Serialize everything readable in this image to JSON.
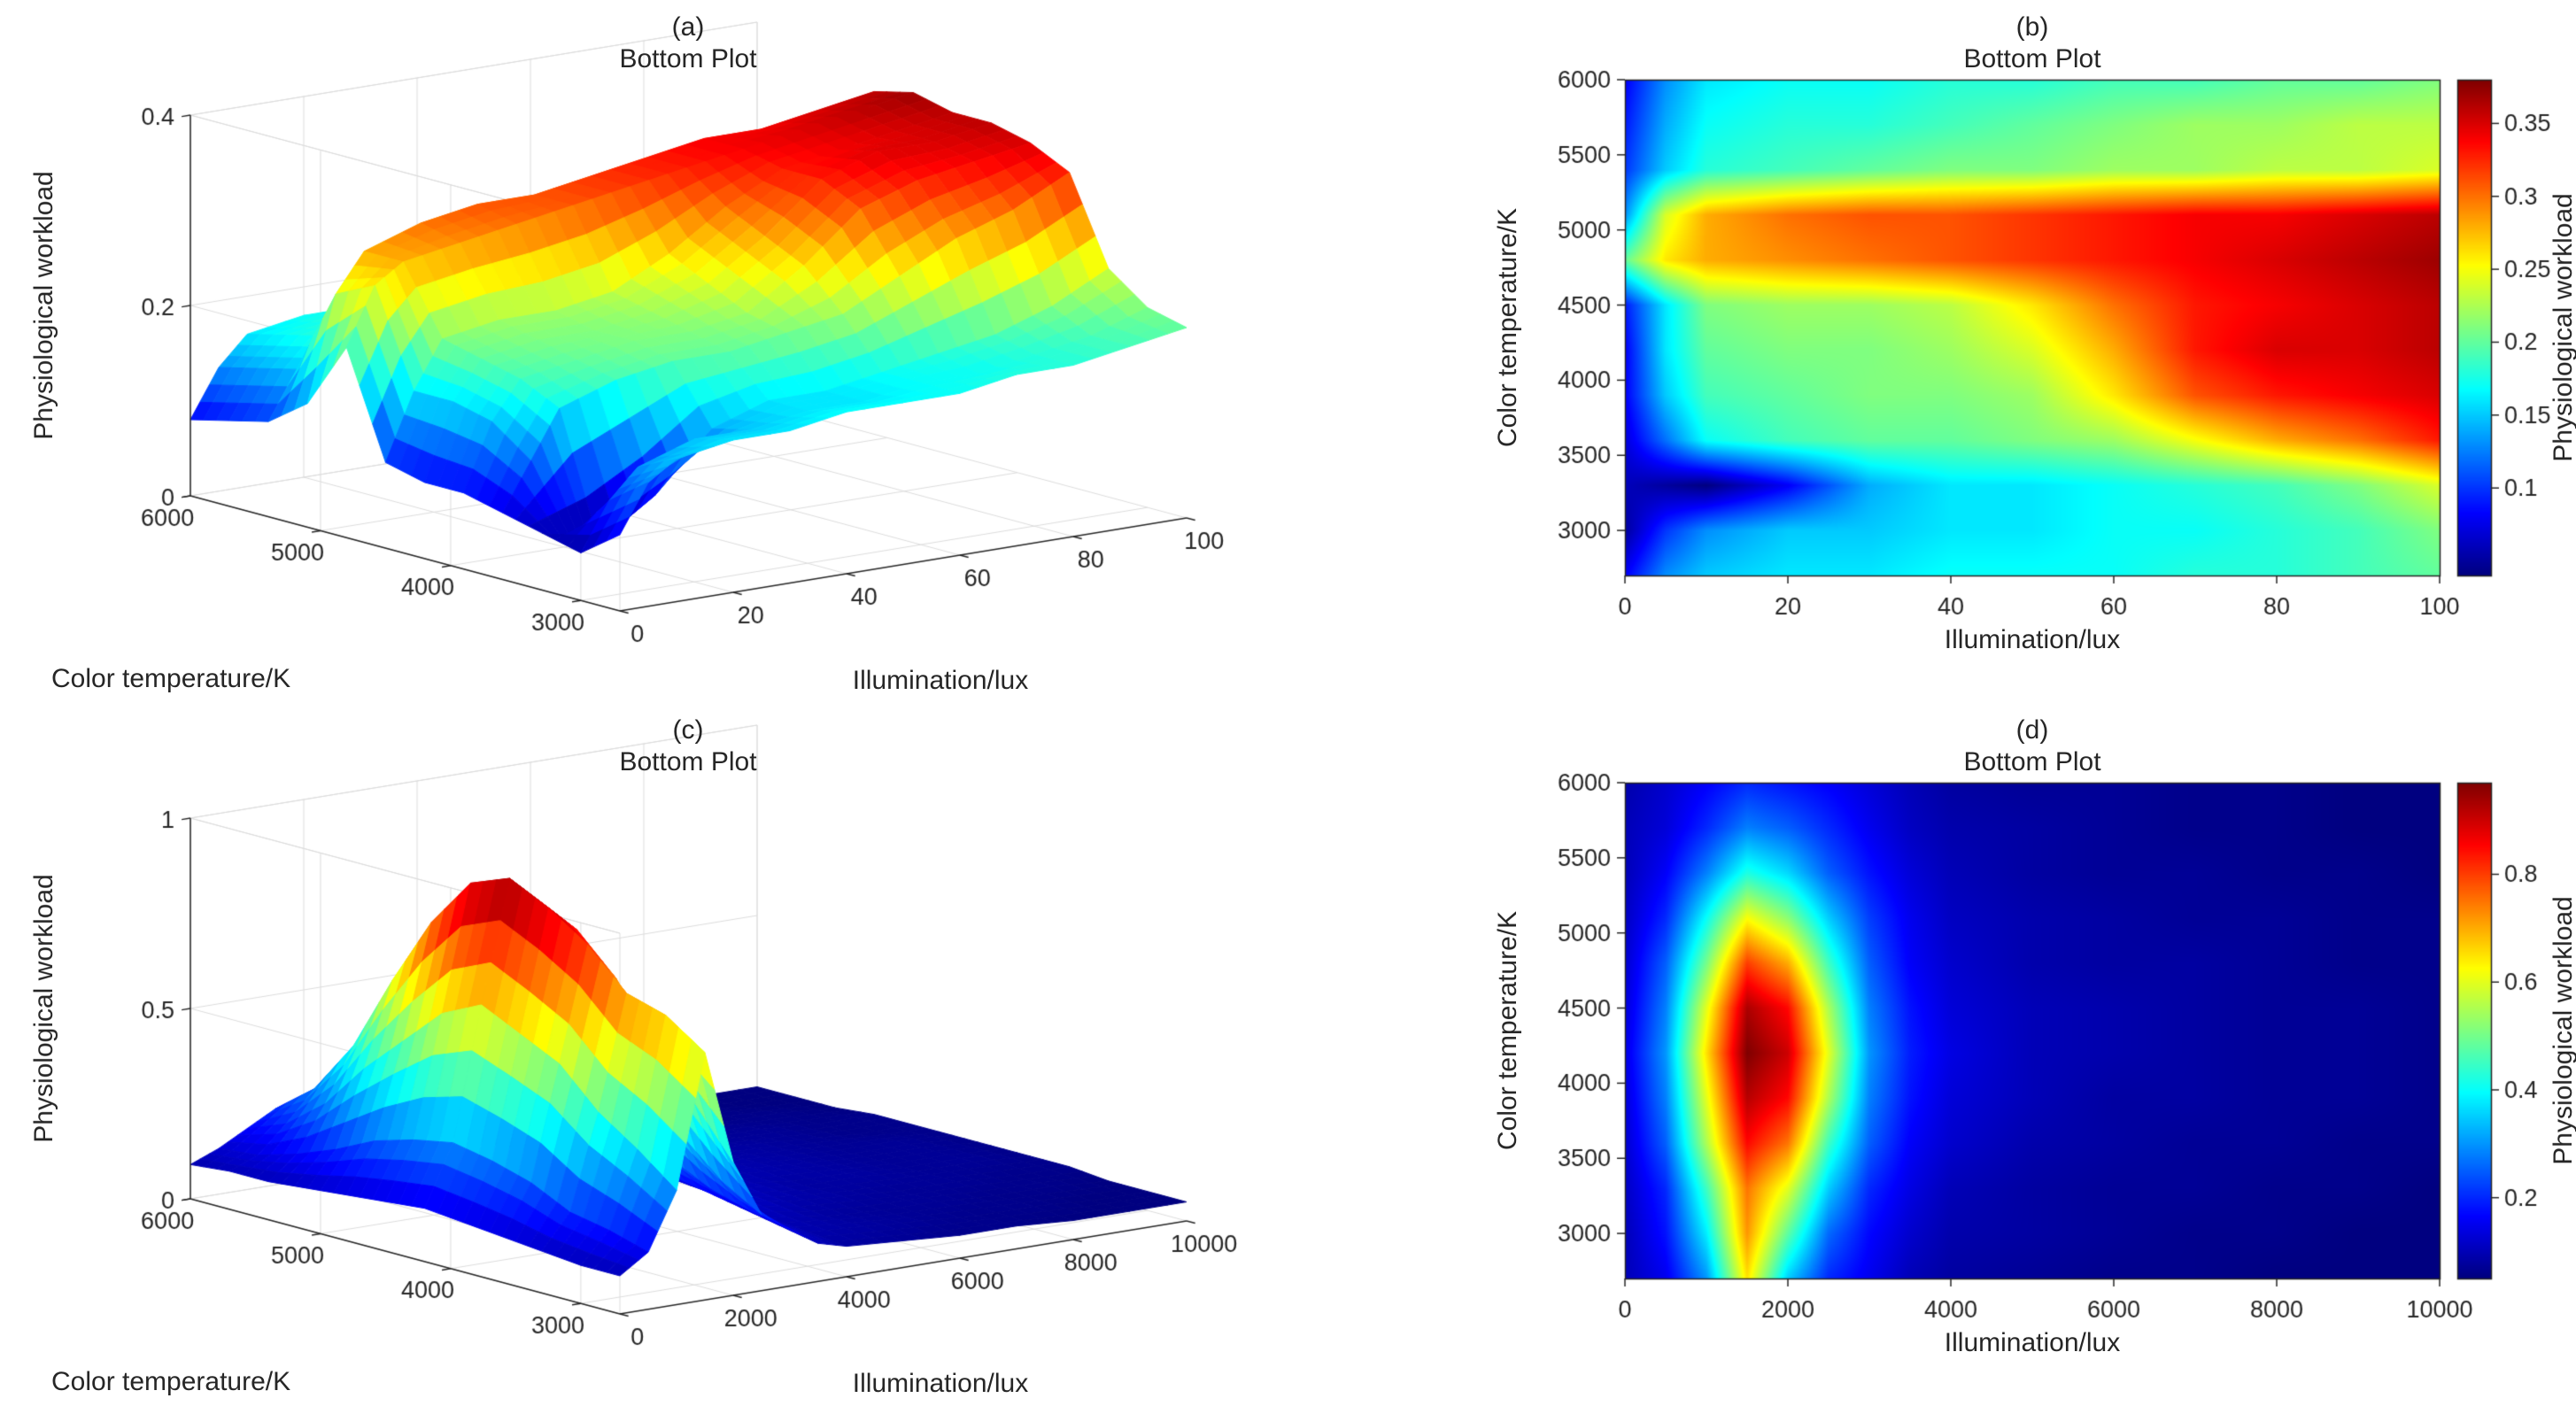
{
  "colors": {
    "background": "#ffffff",
    "text": "#262626",
    "axis": "#262626",
    "grid": "#dcdcdc"
  },
  "chart_data": [
    {
      "panel_label": "(a)",
      "title": "Bottom Plot",
      "type": "surface",
      "xlabel": "Illumination/lux",
      "ylabel": "Color temperature/K",
      "zlabel": "Physiological workload",
      "x": [
        0,
        5,
        10,
        20,
        30,
        40,
        50,
        60,
        70,
        80,
        90,
        100
      ],
      "y": [
        2700,
        3000,
        3300,
        3600,
        3900,
        4200,
        4500,
        4800,
        5100,
        5400,
        5700,
        6000
      ],
      "z": [
        [
          0.08,
          0.13,
          0.15,
          0.16,
          0.16,
          0.17,
          0.17,
          0.17,
          0.18,
          0.18,
          0.19,
          0.2
        ],
        [
          0.05,
          0.1,
          0.13,
          0.15,
          0.15,
          0.16,
          0.16,
          0.17,
          0.17,
          0.18,
          0.19,
          0.21
        ],
        [
          0.06,
          0.05,
          0.04,
          0.08,
          0.14,
          0.16,
          0.16,
          0.17,
          0.18,
          0.19,
          0.21,
          0.24
        ],
        [
          0.07,
          0.12,
          0.17,
          0.19,
          0.2,
          0.2,
          0.21,
          0.22,
          0.25,
          0.28,
          0.3,
          0.33
        ],
        [
          0.08,
          0.15,
          0.19,
          0.2,
          0.21,
          0.21,
          0.22,
          0.26,
          0.31,
          0.33,
          0.34,
          0.35
        ],
        [
          0.08,
          0.16,
          0.2,
          0.21,
          0.21,
          0.22,
          0.24,
          0.28,
          0.33,
          0.35,
          0.35,
          0.36
        ],
        [
          0.09,
          0.16,
          0.21,
          0.22,
          0.22,
          0.23,
          0.26,
          0.3,
          0.33,
          0.34,
          0.35,
          0.36
        ],
        [
          0.2,
          0.26,
          0.28,
          0.29,
          0.3,
          0.31,
          0.32,
          0.33,
          0.34,
          0.35,
          0.36,
          0.37
        ],
        [
          0.13,
          0.24,
          0.28,
          0.3,
          0.31,
          0.31,
          0.32,
          0.33,
          0.34,
          0.34,
          0.35,
          0.36
        ],
        [
          0.1,
          0.15,
          0.18,
          0.19,
          0.2,
          0.21,
          0.21,
          0.22,
          0.22,
          0.23,
          0.23,
          0.24
        ],
        [
          0.09,
          0.14,
          0.17,
          0.18,
          0.18,
          0.19,
          0.2,
          0.21,
          0.22,
          0.22,
          0.23,
          0.23
        ],
        [
          0.08,
          0.13,
          0.16,
          0.17,
          0.17,
          0.18,
          0.18,
          0.19,
          0.19,
          0.2,
          0.2,
          0.21
        ]
      ],
      "xlim": [
        0,
        100
      ],
      "ylim": [
        2700,
        6000
      ],
      "zlim": [
        0,
        0.4
      ],
      "x_ticks": [
        0,
        20,
        40,
        60,
        80,
        100
      ],
      "y_ticks": [
        3000,
        4000,
        5000,
        6000
      ],
      "z_ticks": [
        0,
        0.2,
        0.4
      ],
      "clim": [
        0.04,
        0.38
      ]
    },
    {
      "panel_label": "(b)",
      "title": "Bottom Plot",
      "type": "heatmap",
      "xlabel": "Illumination/lux",
      "ylabel": "Color temperature/K",
      "colorbar_label": "Physiological workload",
      "x": [
        0,
        5,
        10,
        20,
        30,
        40,
        50,
        60,
        70,
        80,
        90,
        100
      ],
      "y": [
        2700,
        3000,
        3300,
        3600,
        3900,
        4200,
        4500,
        4800,
        5100,
        5400,
        5700,
        6000
      ],
      "z": [
        [
          0.08,
          0.13,
          0.15,
          0.16,
          0.16,
          0.17,
          0.17,
          0.17,
          0.18,
          0.18,
          0.19,
          0.2
        ],
        [
          0.05,
          0.1,
          0.13,
          0.15,
          0.15,
          0.16,
          0.16,
          0.17,
          0.17,
          0.18,
          0.19,
          0.21
        ],
        [
          0.06,
          0.05,
          0.04,
          0.08,
          0.14,
          0.16,
          0.16,
          0.17,
          0.18,
          0.19,
          0.21,
          0.24
        ],
        [
          0.07,
          0.12,
          0.17,
          0.19,
          0.2,
          0.2,
          0.21,
          0.22,
          0.25,
          0.28,
          0.3,
          0.33
        ],
        [
          0.08,
          0.15,
          0.19,
          0.2,
          0.21,
          0.21,
          0.22,
          0.26,
          0.31,
          0.33,
          0.34,
          0.35
        ],
        [
          0.08,
          0.16,
          0.2,
          0.21,
          0.21,
          0.22,
          0.24,
          0.28,
          0.33,
          0.35,
          0.35,
          0.36
        ],
        [
          0.09,
          0.16,
          0.21,
          0.22,
          0.22,
          0.23,
          0.26,
          0.3,
          0.33,
          0.34,
          0.35,
          0.36
        ],
        [
          0.2,
          0.26,
          0.28,
          0.29,
          0.3,
          0.31,
          0.32,
          0.33,
          0.34,
          0.35,
          0.36,
          0.37
        ],
        [
          0.13,
          0.24,
          0.28,
          0.3,
          0.31,
          0.31,
          0.32,
          0.33,
          0.34,
          0.34,
          0.35,
          0.36
        ],
        [
          0.1,
          0.15,
          0.18,
          0.19,
          0.2,
          0.21,
          0.21,
          0.22,
          0.22,
          0.23,
          0.23,
          0.24
        ],
        [
          0.09,
          0.14,
          0.17,
          0.18,
          0.18,
          0.19,
          0.2,
          0.21,
          0.22,
          0.22,
          0.23,
          0.23
        ],
        [
          0.08,
          0.13,
          0.16,
          0.17,
          0.17,
          0.18,
          0.18,
          0.19,
          0.19,
          0.2,
          0.2,
          0.21
        ]
      ],
      "xlim": [
        0,
        100
      ],
      "ylim": [
        2700,
        6000
      ],
      "x_ticks": [
        0,
        20,
        40,
        60,
        80,
        100
      ],
      "y_ticks": [
        3000,
        3500,
        4000,
        4500,
        5000,
        5500,
        6000
      ],
      "clim": [
        0.04,
        0.38
      ],
      "colorbar_ticks": [
        0.1,
        0.15,
        0.2,
        0.25,
        0.3,
        0.35
      ]
    },
    {
      "panel_label": "(c)",
      "title": "Bottom Plot",
      "type": "surface",
      "xlabel": "Illumination/lux",
      "ylabel": "Color temperature/K",
      "zlabel": "Physiological workload",
      "x": [
        0,
        500,
        1000,
        1500,
        2000,
        2500,
        3000,
        3500,
        4000,
        5000,
        6000,
        7000,
        8000,
        9000,
        10000
      ],
      "y": [
        2700,
        3000,
        3300,
        3600,
        3900,
        4200,
        4500,
        4800,
        5100,
        5400,
        5700,
        6000
      ],
      "z": [
        [
          0.1,
          0.15,
          0.3,
          0.65,
          0.35,
          0.2,
          0.15,
          0.1,
          0.08,
          0.07,
          0.06,
          0.06,
          0.05,
          0.05,
          0.05
        ],
        [
          0.1,
          0.18,
          0.38,
          0.72,
          0.48,
          0.26,
          0.17,
          0.12,
          0.09,
          0.08,
          0.07,
          0.06,
          0.06,
          0.05,
          0.05
        ],
        [
          0.11,
          0.2,
          0.45,
          0.75,
          0.6,
          0.35,
          0.2,
          0.14,
          0.1,
          0.08,
          0.07,
          0.07,
          0.06,
          0.06,
          0.05
        ],
        [
          0.12,
          0.25,
          0.55,
          0.85,
          0.75,
          0.45,
          0.25,
          0.16,
          0.12,
          0.09,
          0.08,
          0.07,
          0.07,
          0.06,
          0.06
        ],
        [
          0.13,
          0.28,
          0.6,
          0.92,
          0.85,
          0.55,
          0.28,
          0.18,
          0.13,
          0.1,
          0.08,
          0.08,
          0.07,
          0.07,
          0.06
        ],
        [
          0.14,
          0.3,
          0.65,
          0.97,
          0.9,
          0.6,
          0.3,
          0.19,
          0.14,
          0.1,
          0.09,
          0.08,
          0.07,
          0.07,
          0.06
        ],
        [
          0.13,
          0.28,
          0.6,
          0.93,
          0.85,
          0.55,
          0.28,
          0.18,
          0.13,
          0.1,
          0.09,
          0.08,
          0.07,
          0.07,
          0.06
        ],
        [
          0.12,
          0.25,
          0.5,
          0.8,
          0.7,
          0.45,
          0.25,
          0.16,
          0.12,
          0.09,
          0.08,
          0.08,
          0.07,
          0.06,
          0.06
        ],
        [
          0.11,
          0.2,
          0.4,
          0.62,
          0.52,
          0.35,
          0.22,
          0.15,
          0.11,
          0.09,
          0.08,
          0.07,
          0.07,
          0.06,
          0.06
        ],
        [
          0.1,
          0.16,
          0.28,
          0.42,
          0.36,
          0.25,
          0.18,
          0.13,
          0.1,
          0.08,
          0.07,
          0.07,
          0.06,
          0.06,
          0.05
        ],
        [
          0.1,
          0.13,
          0.2,
          0.28,
          0.25,
          0.2,
          0.15,
          0.11,
          0.09,
          0.08,
          0.07,
          0.06,
          0.06,
          0.05,
          0.05
        ],
        [
          0.09,
          0.12,
          0.16,
          0.2,
          0.18,
          0.16,
          0.13,
          0.1,
          0.08,
          0.07,
          0.07,
          0.06,
          0.06,
          0.05,
          0.05
        ]
      ],
      "xlim": [
        0,
        10000
      ],
      "ylim": [
        2700,
        6000
      ],
      "zlim": [
        0,
        1
      ],
      "x_ticks": [
        0,
        2000,
        4000,
        6000,
        8000,
        10000
      ],
      "y_ticks": [
        3000,
        4000,
        5000,
        6000
      ],
      "z_ticks": [
        0,
        0.5,
        1
      ],
      "clim": [
        0.05,
        0.97
      ]
    },
    {
      "panel_label": "(d)",
      "title": "Bottom Plot",
      "type": "heatmap",
      "xlabel": "Illumination/lux",
      "ylabel": "Color temperature/K",
      "colorbar_label": "Physiological workload",
      "x": [
        0,
        500,
        1000,
        1500,
        2000,
        2500,
        3000,
        3500,
        4000,
        5000,
        6000,
        7000,
        8000,
        9000,
        10000
      ],
      "y": [
        2700,
        3000,
        3300,
        3600,
        3900,
        4200,
        4500,
        4800,
        5100,
        5400,
        5700,
        6000
      ],
      "z": [
        [
          0.1,
          0.15,
          0.3,
          0.65,
          0.35,
          0.2,
          0.15,
          0.1,
          0.08,
          0.07,
          0.06,
          0.06,
          0.05,
          0.05,
          0.05
        ],
        [
          0.1,
          0.18,
          0.38,
          0.72,
          0.48,
          0.26,
          0.17,
          0.12,
          0.09,
          0.08,
          0.07,
          0.06,
          0.06,
          0.05,
          0.05
        ],
        [
          0.11,
          0.2,
          0.45,
          0.75,
          0.6,
          0.35,
          0.2,
          0.14,
          0.1,
          0.08,
          0.07,
          0.07,
          0.06,
          0.06,
          0.05
        ],
        [
          0.12,
          0.25,
          0.55,
          0.85,
          0.75,
          0.45,
          0.25,
          0.16,
          0.12,
          0.09,
          0.08,
          0.07,
          0.07,
          0.06,
          0.06
        ],
        [
          0.13,
          0.28,
          0.6,
          0.92,
          0.85,
          0.55,
          0.28,
          0.18,
          0.13,
          0.1,
          0.08,
          0.08,
          0.07,
          0.07,
          0.06
        ],
        [
          0.14,
          0.3,
          0.65,
          0.97,
          0.9,
          0.6,
          0.3,
          0.19,
          0.14,
          0.1,
          0.09,
          0.08,
          0.07,
          0.07,
          0.06
        ],
        [
          0.13,
          0.28,
          0.6,
          0.93,
          0.85,
          0.55,
          0.28,
          0.18,
          0.13,
          0.1,
          0.09,
          0.08,
          0.07,
          0.07,
          0.06
        ],
        [
          0.12,
          0.25,
          0.5,
          0.8,
          0.7,
          0.45,
          0.25,
          0.16,
          0.12,
          0.09,
          0.08,
          0.08,
          0.07,
          0.06,
          0.06
        ],
        [
          0.11,
          0.2,
          0.4,
          0.62,
          0.52,
          0.35,
          0.22,
          0.15,
          0.11,
          0.09,
          0.08,
          0.07,
          0.07,
          0.06,
          0.06
        ],
        [
          0.1,
          0.16,
          0.28,
          0.42,
          0.36,
          0.25,
          0.18,
          0.13,
          0.1,
          0.08,
          0.07,
          0.07,
          0.06,
          0.06,
          0.05
        ],
        [
          0.1,
          0.13,
          0.2,
          0.28,
          0.25,
          0.2,
          0.15,
          0.11,
          0.09,
          0.08,
          0.07,
          0.06,
          0.06,
          0.05,
          0.05
        ],
        [
          0.09,
          0.12,
          0.16,
          0.2,
          0.18,
          0.16,
          0.13,
          0.1,
          0.08,
          0.07,
          0.07,
          0.06,
          0.06,
          0.05,
          0.05
        ]
      ],
      "xlim": [
        0,
        10000
      ],
      "ylim": [
        2700,
        6000
      ],
      "x_ticks": [
        0,
        2000,
        4000,
        6000,
        8000,
        10000
      ],
      "y_ticks": [
        3000,
        3500,
        4000,
        4500,
        5000,
        5500,
        6000
      ],
      "clim": [
        0.05,
        0.97
      ],
      "colorbar_ticks": [
        0.2,
        0.4,
        0.6,
        0.8
      ]
    }
  ]
}
